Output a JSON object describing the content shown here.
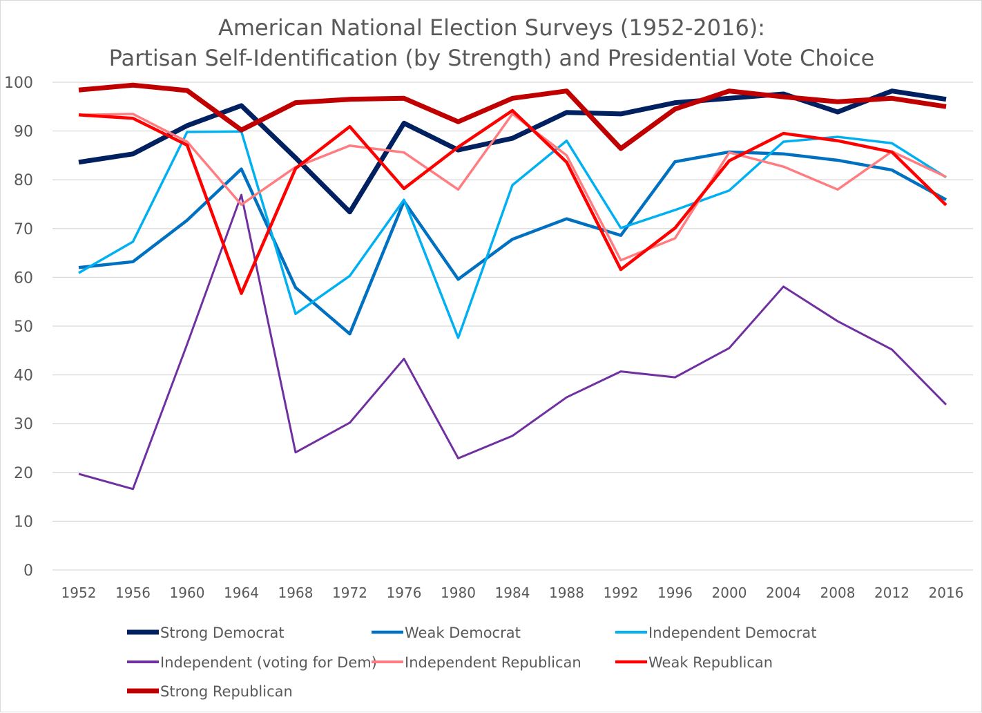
{
  "chart_data": {
    "type": "line",
    "title": [
      "American National Election Surveys (1952-2016):",
      "Partisan Self-Identification (by Strength) and Presidential Vote Choice"
    ],
    "xlabel": "",
    "ylabel": "",
    "ylim": [
      0,
      100
    ],
    "yticks": [
      0,
      10,
      20,
      30,
      40,
      50,
      60,
      70,
      80,
      90,
      100
    ],
    "grid": true,
    "legend_position": "bottom",
    "categories": [
      "1952",
      "1956",
      "1960",
      "1964",
      "1968",
      "1972",
      "1976",
      "1980",
      "1984",
      "1988",
      "1992",
      "1996",
      "2000",
      "2004",
      "2008",
      "2012",
      "2016"
    ],
    "series": [
      {
        "name": "Strong Democrat",
        "color": "#002060",
        "values": [
          83.6,
          85.3,
          91.1,
          95.2,
          84.5,
          73.4,
          91.6,
          86.1,
          88.5,
          93.8,
          93.5,
          95.8,
          96.7,
          97.6,
          93.9,
          98.2,
          96.5
        ]
      },
      {
        "name": "Weak Democrat",
        "color": "#0070C0",
        "values": [
          62.0,
          63.2,
          71.7,
          82.2,
          57.9,
          48.4,
          75.6,
          59.6,
          67.8,
          72.0,
          68.6,
          83.7,
          85.7,
          85.3,
          84.0,
          82.0,
          75.9
        ]
      },
      {
        "name": "Independent Democrat",
        "color": "#00B0F0",
        "values": [
          60.9,
          67.3,
          89.8,
          89.9,
          52.5,
          60.3,
          75.9,
          47.6,
          78.9,
          88.0,
          70.1,
          73.8,
          77.8,
          87.8,
          88.8,
          87.5,
          80.5
        ]
      },
      {
        "name": "Independent (voting for Dem)",
        "color": "#7030A0",
        "values": [
          19.7,
          16.6,
          46.3,
          76.9,
          24.1,
          30.2,
          43.3,
          22.9,
          27.5,
          35.4,
          40.7,
          39.5,
          45.5,
          58.1,
          51.0,
          45.2,
          33.9
        ]
      },
      {
        "name": "Independent Republican",
        "color": "#FF7C80",
        "values": [
          93.3,
          93.5,
          87.8,
          74.9,
          82.6,
          87.0,
          85.6,
          78.0,
          93.5,
          85.0,
          63.5,
          68.0,
          85.6,
          82.7,
          78.0,
          85.8,
          80.6
        ]
      },
      {
        "name": "Weak Republican",
        "color": "#FF0000",
        "values": [
          93.3,
          92.6,
          87.1,
          56.7,
          82.3,
          90.9,
          78.2,
          86.7,
          94.2,
          83.6,
          61.6,
          70.1,
          83.9,
          89.5,
          88.0,
          85.7,
          74.8
        ]
      },
      {
        "name": "Strong Republican",
        "color": "#C00000",
        "values": [
          98.4,
          99.4,
          98.3,
          90.2,
          95.8,
          96.5,
          96.7,
          91.9,
          96.7,
          98.2,
          86.4,
          94.5,
          98.2,
          97.0,
          96.0,
          96.7,
          95.0
        ]
      }
    ]
  }
}
